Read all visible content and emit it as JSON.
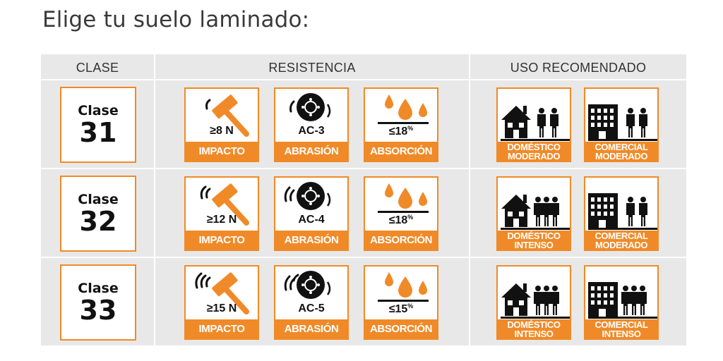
{
  "title": "Elige tu suelo laminado:",
  "headers": {
    "clase": "CLASE",
    "resistencia": "RESISTENCIA",
    "uso": "USO RECOMENDADO"
  },
  "colors": {
    "accent": "#f08a28",
    "table_bg": "#e8e8e8",
    "icon": "#111111"
  },
  "rows": [
    {
      "clase_label": "Clase",
      "clase_num": "31",
      "impacto_value": "≥8 N",
      "impacto_label": "IMPACTO",
      "abrasion_value": "AC-3",
      "abrasion_label": "ABRASIÓN",
      "absorcion_value": "≤18",
      "absorcion_unit": "%",
      "absorcion_label": "ABSORCIÓN",
      "domestic_line1": "DOMÉSTICO",
      "domestic_line2": "MODERADO",
      "commercial_line1": "COMERCIAL",
      "commercial_line2": "MODERADO"
    },
    {
      "clase_label": "Clase",
      "clase_num": "32",
      "impacto_value": "≥12 N",
      "impacto_label": "IMPACTO",
      "abrasion_value": "AC-4",
      "abrasion_label": "ABRASIÓN",
      "absorcion_value": "≤18",
      "absorcion_unit": "%",
      "absorcion_label": "ABSORCIÓN",
      "domestic_line1": "DOMÉSTICO",
      "domestic_line2": "INTENSO",
      "commercial_line1": "COMERCIAL",
      "commercial_line2": "MODERADO"
    },
    {
      "clase_label": "Clase",
      "clase_num": "33",
      "impacto_value": "≥15 N",
      "impacto_label": "IMPACTO",
      "abrasion_value": "AC-5",
      "abrasion_label": "ABRASIÓN",
      "absorcion_value": "≤15",
      "absorcion_unit": "%",
      "absorcion_label": "ABSORCIÓN",
      "domestic_line1": "DOMÉSTICO",
      "domestic_line2": "INTENSO",
      "commercial_line1": "COMERCIAL",
      "commercial_line2": "INTENSO"
    }
  ],
  "icons": {
    "impacto": "hammer-icon",
    "abrasion": "disc-icon",
    "absorcion": "water-drops-icon",
    "domestic": "house-people-icon",
    "commercial": "building-people-icon"
  }
}
